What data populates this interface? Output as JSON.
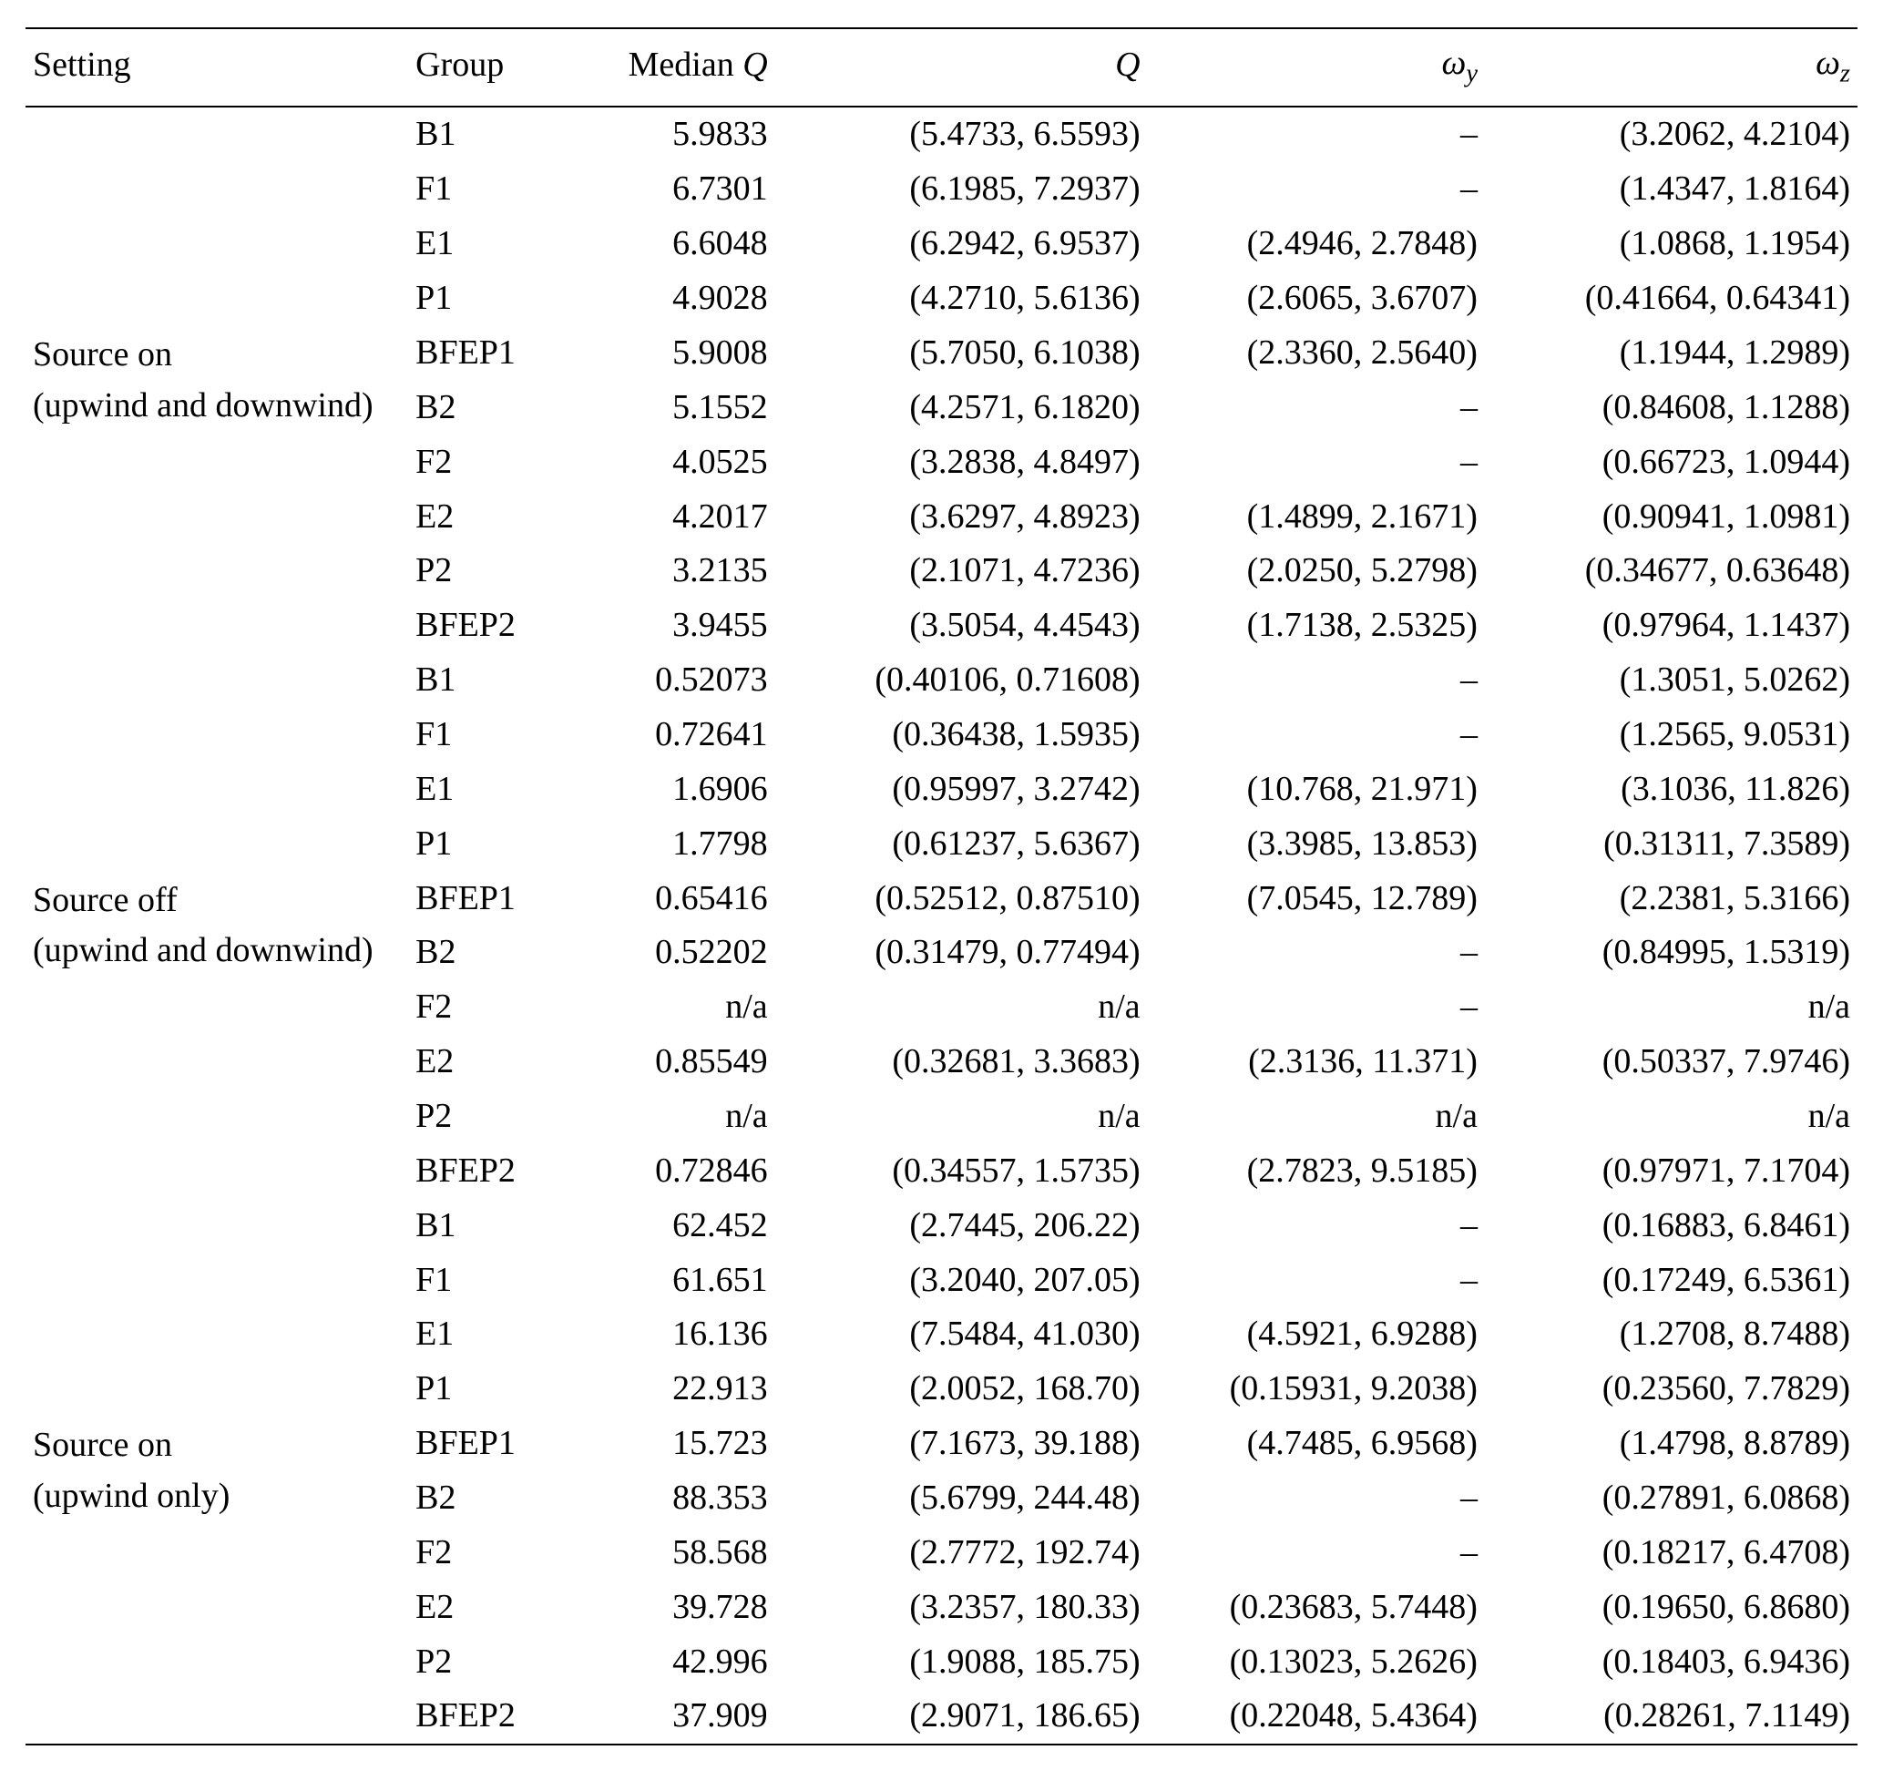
{
  "columns": {
    "setting": "Setting",
    "group": "Group",
    "medianQ_prefix": "Median ",
    "medianQ_var": "Q",
    "Q_var": "Q",
    "omega_y_base": "ω",
    "omega_y_sub": "y",
    "omega_z_base": "ω",
    "omega_z_sub": "z"
  },
  "sections": [
    {
      "setting_line1": "Source on",
      "setting_line2": "(upwind and downwind)",
      "rows": [
        {
          "group": "B1",
          "medianQ": "5.9833",
          "Q": "(5.4733, 6.5593)",
          "wy": "–",
          "wz": "(3.2062, 4.2104)"
        },
        {
          "group": "F1",
          "medianQ": "6.7301",
          "Q": "(6.1985, 7.2937)",
          "wy": "–",
          "wz": "(1.4347, 1.8164)"
        },
        {
          "group": "E1",
          "medianQ": "6.6048",
          "Q": "(6.2942, 6.9537)",
          "wy": "(2.4946, 2.7848)",
          "wz": "(1.0868, 1.1954)"
        },
        {
          "group": "P1",
          "medianQ": "4.9028",
          "Q": "(4.2710, 5.6136)",
          "wy": "(2.6065, 3.6707)",
          "wz": "(0.41664, 0.64341)"
        },
        {
          "group": "BFEP1",
          "medianQ": "5.9008",
          "Q": "(5.7050, 6.1038)",
          "wy": "(2.3360, 2.5640)",
          "wz": "(1.1944, 1.2989)"
        },
        {
          "group": "B2",
          "medianQ": "5.1552",
          "Q": "(4.2571, 6.1820)",
          "wy": "–",
          "wz": "(0.84608, 1.1288)"
        },
        {
          "group": "F2",
          "medianQ": "4.0525",
          "Q": "(3.2838, 4.8497)",
          "wy": "–",
          "wz": "(0.66723, 1.0944)"
        },
        {
          "group": "E2",
          "medianQ": "4.2017",
          "Q": "(3.6297, 4.8923)",
          "wy": "(1.4899, 2.1671)",
          "wz": "(0.90941, 1.0981)"
        },
        {
          "group": "P2",
          "medianQ": "3.2135",
          "Q": "(2.1071, 4.7236)",
          "wy": "(2.0250, 5.2798)",
          "wz": "(0.34677, 0.63648)"
        },
        {
          "group": "BFEP2",
          "medianQ": "3.9455",
          "Q": "(3.5054, 4.4543)",
          "wy": "(1.7138, 2.5325)",
          "wz": "(0.97964, 1.1437)"
        }
      ]
    },
    {
      "setting_line1": "Source off",
      "setting_line2": "(upwind and downwind)",
      "rows": [
        {
          "group": "B1",
          "medianQ": "0.52073",
          "Q": "(0.40106, 0.71608)",
          "wy": "–",
          "wz": "(1.3051, 5.0262)"
        },
        {
          "group": "F1",
          "medianQ": "0.72641",
          "Q": "(0.36438, 1.5935)",
          "wy": "–",
          "wz": "(1.2565, 9.0531)"
        },
        {
          "group": "E1",
          "medianQ": "1.6906",
          "Q": "(0.95997, 3.2742)",
          "wy": "(10.768, 21.971)",
          "wz": "(3.1036, 11.826)"
        },
        {
          "group": "P1",
          "medianQ": "1.7798",
          "Q": "(0.61237, 5.6367)",
          "wy": "(3.3985, 13.853)",
          "wz": "(0.31311, 7.3589)"
        },
        {
          "group": "BFEP1",
          "medianQ": "0.65416",
          "Q": "(0.52512, 0.87510)",
          "wy": "(7.0545, 12.789)",
          "wz": "(2.2381, 5.3166)"
        },
        {
          "group": "B2",
          "medianQ": "0.52202",
          "Q": "(0.31479, 0.77494)",
          "wy": "–",
          "wz": "(0.84995, 1.5319)"
        },
        {
          "group": "F2",
          "medianQ": "n/a",
          "Q": "n/a",
          "wy": "–",
          "wz": "n/a"
        },
        {
          "group": "E2",
          "medianQ": "0.85549",
          "Q": "(0.32681, 3.3683)",
          "wy": "(2.3136, 11.371)",
          "wz": "(0.50337, 7.9746)"
        },
        {
          "group": "P2",
          "medianQ": "n/a",
          "Q": "n/a",
          "wy": "n/a",
          "wz": "n/a"
        },
        {
          "group": "BFEP2",
          "medianQ": "0.72846",
          "Q": "(0.34557, 1.5735)",
          "wy": "(2.7823, 9.5185)",
          "wz": "(0.97971, 7.1704)"
        }
      ]
    },
    {
      "setting_line1": "Source on",
      "setting_line2": "(upwind only)",
      "rows": [
        {
          "group": "B1",
          "medianQ": "62.452",
          "Q": "(2.7445, 206.22)",
          "wy": "–",
          "wz": "(0.16883, 6.8461)"
        },
        {
          "group": "F1",
          "medianQ": "61.651",
          "Q": "(3.2040, 207.05)",
          "wy": "–",
          "wz": "(0.17249, 6.5361)"
        },
        {
          "group": "E1",
          "medianQ": "16.136",
          "Q": "(7.5484, 41.030)",
          "wy": "(4.5921, 6.9288)",
          "wz": "(1.2708, 8.7488)"
        },
        {
          "group": "P1",
          "medianQ": "22.913",
          "Q": "(2.0052, 168.70)",
          "wy": "(0.15931, 9.2038)",
          "wz": "(0.23560, 7.7829)"
        },
        {
          "group": "BFEP1",
          "medianQ": "15.723",
          "Q": "(7.1673, 39.188)",
          "wy": "(4.7485, 6.9568)",
          "wz": "(1.4798, 8.8789)"
        },
        {
          "group": "B2",
          "medianQ": "88.353",
          "Q": "(5.6799, 244.48)",
          "wy": "–",
          "wz": "(0.27891, 6.0868)"
        },
        {
          "group": "F2",
          "medianQ": "58.568",
          "Q": "(2.7772, 192.74)",
          "wy": "–",
          "wz": "(0.18217, 6.4708)"
        },
        {
          "group": "E2",
          "medianQ": "39.728",
          "Q": "(3.2357, 180.33)",
          "wy": "(0.23683, 5.7448)",
          "wz": "(0.19650, 6.8680)"
        },
        {
          "group": "P2",
          "medianQ": "42.996",
          "Q": "(1.9088, 185.75)",
          "wy": "(0.13023, 5.2626)",
          "wz": "(0.18403, 6.9436)"
        },
        {
          "group": "BFEP2",
          "medianQ": "37.909",
          "Q": "(2.9071, 186.65)",
          "wy": "(0.22048, 5.4364)",
          "wz": "(0.28261, 7.1149)"
        }
      ]
    }
  ]
}
